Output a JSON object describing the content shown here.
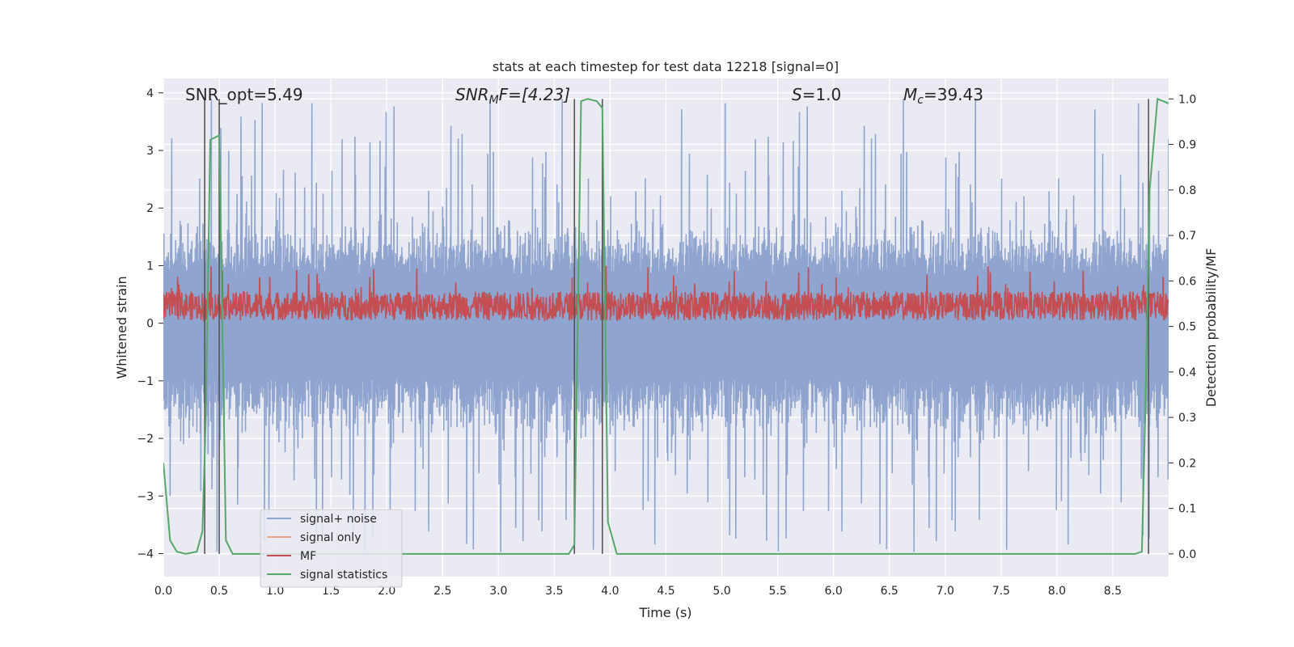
{
  "chart_data": {
    "type": "line",
    "title": "stats at each timestep for test data 12218 [signal=0]",
    "xlabel": "Time (s)",
    "ylabel": "Whitened strain",
    "ylabel_right": "Detection probability/MF",
    "xlim": [
      0,
      9
    ],
    "ylim": [
      -4.4,
      4.25
    ],
    "ylim_right": [
      -0.05,
      1.045
    ],
    "x_ticks": [
      "0.0",
      "0.5",
      "1.0",
      "1.5",
      "2.0",
      "2.5",
      "3.0",
      "3.5",
      "4.0",
      "4.5",
      "5.0",
      "5.5",
      "6.0",
      "6.5",
      "7.0",
      "7.5",
      "8.0",
      "8.5"
    ],
    "y_ticks": [
      "−4",
      "−3",
      "−2",
      "−1",
      "0",
      "1",
      "2",
      "3",
      "4"
    ],
    "y_ticks_right": [
      "0.0",
      "0.1",
      "0.2",
      "0.3",
      "0.4",
      "0.5",
      "0.6",
      "0.7",
      "0.8",
      "0.9",
      "1.0"
    ],
    "grid": true,
    "legend_position": "lower-left",
    "annotations": {
      "snr_opt": "SNR_opt=5.49",
      "snr_mf_sym": "SNR",
      "snr_mf_sub": "M",
      "snr_mf_rest": "F=[4.23]",
      "s_sym": "S",
      "s_rest": "=1.0",
      "mc_sym": "M",
      "mc_sub": "c",
      "mc_rest": "=39.43"
    },
    "vertical_markers": [
      0.37,
      0.5,
      3.68,
      3.93,
      8.82
    ],
    "series": [
      {
        "name": "signal+ noise",
        "color": "#8fa5cf",
        "axis": "left",
        "envelope": {
          "x": [
            0,
            9
          ],
          "upper_typical": 1.5,
          "upper_peak": 3.9,
          "lower_typical": -1.7,
          "lower_peak": -4.0
        }
      },
      {
        "name": "signal only",
        "color": "#e8a58a",
        "axis": "left"
      },
      {
        "name": "MF",
        "color": "#c44e52",
        "axis": "left",
        "envelope": {
          "x": [
            0,
            9
          ],
          "baseline": 0.05,
          "typical_top": 0.55,
          "peak": 1.0
        }
      },
      {
        "name": "signal statistics",
        "color": "#55a868",
        "axis": "right",
        "x": [
          0,
          0.06,
          0.12,
          0.2,
          0.3,
          0.35,
          0.38,
          0.42,
          0.46,
          0.5,
          0.56,
          0.62,
          0.8,
          1.5,
          2.5,
          3.0,
          3.63,
          3.68,
          3.74,
          3.8,
          3.88,
          3.93,
          3.98,
          4.06,
          4.2,
          5.0,
          6.0,
          7.0,
          8.0,
          8.7,
          8.76,
          8.79,
          8.83,
          8.9,
          8.95,
          9.0
        ],
        "y": [
          0.2,
          0.03,
          0.005,
          0.0,
          0.005,
          0.05,
          0.3,
          0.91,
          0.915,
          0.92,
          0.03,
          0.0,
          0.0,
          0.0,
          0.0,
          0.0,
          0.0,
          0.02,
          0.995,
          1.0,
          0.995,
          0.98,
          0.07,
          0.0,
          0.0,
          0.0,
          0.0,
          0.0,
          0.0,
          0.0,
          0.005,
          0.3,
          0.8,
          1.0,
          0.995,
          0.99
        ]
      }
    ]
  }
}
